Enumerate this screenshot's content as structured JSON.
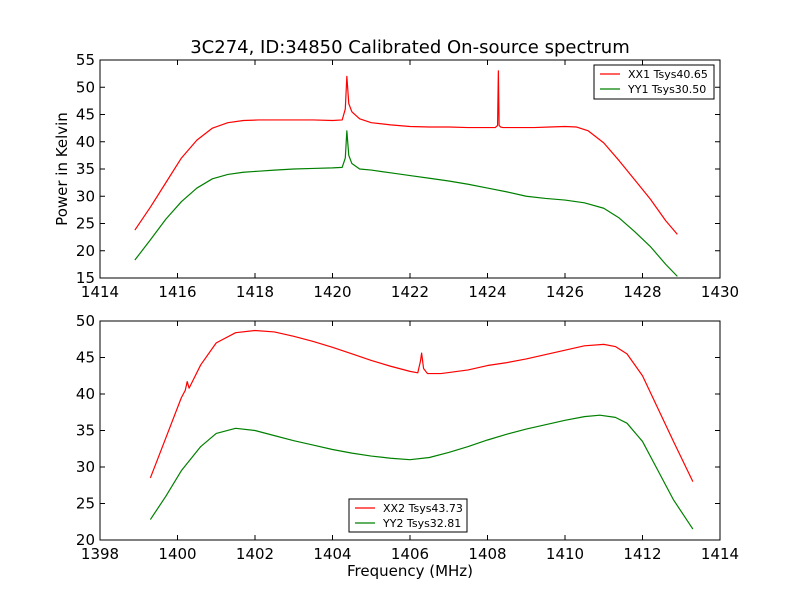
{
  "title": "3C274, ID:34850 Calibrated On-source spectrum",
  "colors": {
    "xx": "#ff0000",
    "yy": "#008000"
  },
  "chart_data": [
    {
      "type": "line",
      "xlabel": "",
      "ylabel": "Power in Kelvin",
      "xlim": [
        1414,
        1430
      ],
      "ylim": [
        15,
        55
      ],
      "xticks": [
        1414,
        1416,
        1418,
        1420,
        1422,
        1424,
        1426,
        1428,
        1430
      ],
      "yticks": [
        15,
        20,
        25,
        30,
        35,
        40,
        45,
        50,
        55
      ],
      "legend_position": "top-right",
      "series": [
        {
          "name": "XX1 Tsys40.65",
          "color": "#ff0000",
          "x": [
            1414.9,
            1415.3,
            1415.7,
            1416.1,
            1416.5,
            1416.9,
            1417.3,
            1417.7,
            1418.1,
            1418.5,
            1419.0,
            1419.5,
            1420.0,
            1420.25,
            1420.33,
            1420.37,
            1420.42,
            1420.5,
            1420.7,
            1421.0,
            1421.5,
            1422.0,
            1422.5,
            1423.0,
            1423.5,
            1424.0,
            1424.2,
            1424.26,
            1424.28,
            1424.3,
            1424.34,
            1424.4,
            1424.8,
            1425.2,
            1425.6,
            1426.0,
            1426.3,
            1426.6,
            1427.0,
            1427.4,
            1427.8,
            1428.2,
            1428.6,
            1428.9
          ],
          "y": [
            23.8,
            28.0,
            32.5,
            37.0,
            40.3,
            42.5,
            43.5,
            43.9,
            44.0,
            44.0,
            44.0,
            44.0,
            43.9,
            44.0,
            46.0,
            52.0,
            47.0,
            45.5,
            44.2,
            43.5,
            43.1,
            42.8,
            42.7,
            42.7,
            42.6,
            42.6,
            42.6,
            43.0,
            53.0,
            43.0,
            42.7,
            42.6,
            42.6,
            42.6,
            42.7,
            42.8,
            42.7,
            42.0,
            39.8,
            36.5,
            33.0,
            29.5,
            25.5,
            23.0
          ]
        },
        {
          "name": "YY1 Tsys30.50",
          "color": "#008000",
          "x": [
            1414.9,
            1415.3,
            1415.7,
            1416.1,
            1416.5,
            1416.9,
            1417.3,
            1417.7,
            1418.1,
            1418.5,
            1419.0,
            1419.5,
            1420.0,
            1420.25,
            1420.33,
            1420.37,
            1420.42,
            1420.5,
            1420.7,
            1421.0,
            1421.5,
            1422.0,
            1422.5,
            1423.0,
            1423.5,
            1424.0,
            1424.5,
            1425.0,
            1425.5,
            1426.0,
            1426.5,
            1427.0,
            1427.4,
            1427.8,
            1428.2,
            1428.6,
            1428.9
          ],
          "y": [
            18.3,
            22.0,
            25.8,
            29.0,
            31.5,
            33.2,
            34.0,
            34.4,
            34.6,
            34.8,
            35.0,
            35.1,
            35.2,
            35.3,
            37.0,
            42.0,
            37.5,
            36.0,
            35.0,
            34.8,
            34.3,
            33.8,
            33.3,
            32.8,
            32.2,
            31.5,
            30.8,
            30.0,
            29.6,
            29.3,
            28.8,
            27.8,
            26.0,
            23.5,
            20.8,
            17.5,
            15.3
          ]
        }
      ]
    },
    {
      "type": "line",
      "xlabel": "Frequency (MHz)",
      "ylabel": "",
      "xlim": [
        1398,
        1414
      ],
      "ylim": [
        20,
        50
      ],
      "xticks": [
        1398,
        1400,
        1402,
        1404,
        1406,
        1408,
        1410,
        1412,
        1414
      ],
      "yticks": [
        20,
        25,
        30,
        35,
        40,
        45,
        50
      ],
      "legend_position": "bottom-center",
      "series": [
        {
          "name": "XX2 Tsys43.73",
          "color": "#ff0000",
          "x": [
            1399.3,
            1399.7,
            1400.1,
            1400.2,
            1400.25,
            1400.3,
            1400.6,
            1401.0,
            1401.5,
            1402.0,
            1402.5,
            1403.0,
            1403.5,
            1404.0,
            1404.5,
            1405.0,
            1405.5,
            1406.0,
            1406.2,
            1406.27,
            1406.3,
            1406.35,
            1406.45,
            1406.8,
            1407.5,
            1408.0,
            1408.5,
            1409.0,
            1409.5,
            1410.0,
            1410.5,
            1411.0,
            1411.3,
            1411.6,
            1412.0,
            1412.4,
            1412.8,
            1413.3
          ],
          "y": [
            28.5,
            34.0,
            39.5,
            40.5,
            41.7,
            40.8,
            44.0,
            47.0,
            48.4,
            48.7,
            48.5,
            47.9,
            47.2,
            46.4,
            45.5,
            44.6,
            43.8,
            43.1,
            42.9,
            44.5,
            45.6,
            43.5,
            42.8,
            42.8,
            43.3,
            43.9,
            44.3,
            44.8,
            45.4,
            46.0,
            46.6,
            46.8,
            46.5,
            45.5,
            42.5,
            38.0,
            33.5,
            28.0
          ]
        },
        {
          "name": "YY2 Tsys32.81",
          "color": "#008000",
          "x": [
            1399.3,
            1399.7,
            1400.1,
            1400.6,
            1401.0,
            1401.5,
            1402.0,
            1402.5,
            1403.0,
            1403.5,
            1404.0,
            1404.5,
            1405.0,
            1405.5,
            1406.0,
            1406.5,
            1407.0,
            1407.5,
            1408.0,
            1408.5,
            1409.0,
            1409.5,
            1410.0,
            1410.5,
            1410.9,
            1411.3,
            1411.6,
            1412.0,
            1412.4,
            1412.8,
            1413.3
          ],
          "y": [
            22.8,
            26.0,
            29.5,
            32.8,
            34.6,
            35.3,
            35.0,
            34.3,
            33.6,
            33.0,
            32.4,
            31.9,
            31.5,
            31.2,
            31.0,
            31.3,
            32.0,
            32.8,
            33.7,
            34.5,
            35.2,
            35.8,
            36.4,
            36.9,
            37.1,
            36.8,
            36.0,
            33.5,
            29.5,
            25.5,
            21.5
          ]
        }
      ]
    }
  ]
}
